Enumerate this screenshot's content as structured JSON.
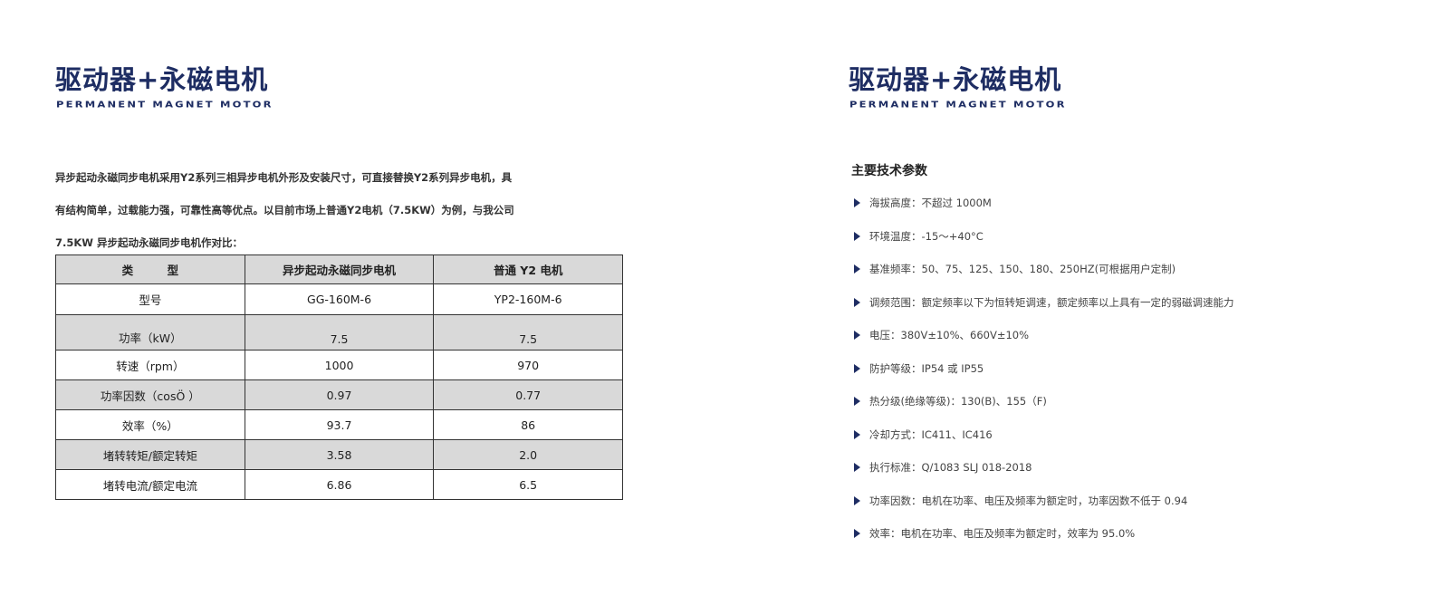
{
  "left": {
    "title": "驱动器+永磁电机",
    "subtitle": "PERMANENT MAGNET MOTOR",
    "intro_lines": [
      "异步起动永磁同步电机采用Y2系列三相异步电机外形及安装尺寸，可直接替换Y2系列异步电机，具",
      "有结构简单，过载能力强，可靠性高等优点。以目前市场上普通Y2电机（7.5KW）为例，与我公司",
      "7.5KW 异步起动永磁同步电机作对比："
    ],
    "table": {
      "headers": [
        "类　　　型",
        "异步起动永磁同步电机",
        "普通 Y2 电机"
      ],
      "rows": [
        [
          "型号",
          "GG-160M-6",
          "YP2-160M-6"
        ],
        [
          "功率（kW）",
          "7.5",
          "7.5"
        ],
        [
          "转速（rpm）",
          "1000",
          "970"
        ],
        [
          "功率因数（cosÖ ）",
          "0.97",
          "0.77"
        ],
        [
          "效率（%）",
          "93.7",
          "86"
        ],
        [
          "堵转转矩/额定转矩",
          "3.58",
          "2.0"
        ],
        [
          "堵转电流/额定电流",
          "6.86",
          "6.5"
        ]
      ]
    }
  },
  "right": {
    "title": "驱动器+永磁电机",
    "subtitle": "PERMANENT MAGNET MOTOR",
    "params_heading": "主要技术参数",
    "params": [
      "海拔高度：不超过 1000M",
      "环境温度：-15～+40°C",
      "基准频率：50、75、125、150、180、250HZ(可根据用户定制)",
      "调频范围：额定频率以下为恒转矩调速，额定频率以上具有一定的弱磁调速能力",
      "电压：380V±10%、660V±10%",
      "防护等级：IP54 或 IP55",
      "热分级(绝缘等级)：130(B)、155（F)",
      "冷却方式：IC411、IC416",
      "执行标准：Q/1083 SLJ 018-2018",
      "功率因数：电机在功率、电压及频率为额定时，功率因数不低于 0.94",
      "效率：电机在功率、电压及频率为额定时，效率为 95.0%"
    ]
  },
  "colors": {
    "brand": "#1e2d63",
    "row_shade": "#d9d9d9"
  },
  "icons": {
    "bullet": "triangle-right-icon"
  }
}
